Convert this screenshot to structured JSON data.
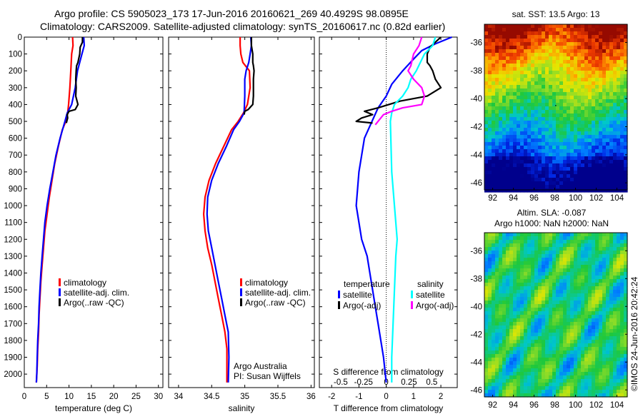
{
  "header": {
    "line1": "Argo profile: CS 5905023_173 17-Jun-2016 20160621_269 40.4929S 98.0895E",
    "line2": "Climatology: CARS2009. Satellite-adjusted climatology: synTS_20160617.nc (0.82d earlier)"
  },
  "credit": "Argo Australia",
  "pi": "PI: Susan Wijffels",
  "watermark": "©IMOS 24-Jun-2016 20:42:24",
  "colors": {
    "climatology": "#ff0000",
    "satellite": "#0000ff",
    "argo": "#000000",
    "salinity_sat": "#00ffff",
    "salinity_argo": "#ff00ff"
  },
  "chart_data": [
    {
      "type": "line",
      "xlabel": "temperature (deg C)",
      "xlim": [
        0,
        31
      ],
      "xticks": [
        "0",
        "5",
        "10",
        "15",
        "20",
        "25",
        "30"
      ],
      "xtick_values": [
        0,
        5,
        10,
        15,
        20,
        25,
        30
      ],
      "ylim": [
        0,
        2080
      ],
      "yticks": [
        "0",
        "100",
        "200",
        "300",
        "400",
        "500",
        "600",
        "700",
        "800",
        "900",
        "1000",
        "1100",
        "1200",
        "1300",
        "1400",
        "1500",
        "1600",
        "1700",
        "1800",
        "1900",
        "2000"
      ],
      "ytick_values": [
        0,
        100,
        200,
        300,
        400,
        500,
        600,
        700,
        800,
        900,
        1000,
        1100,
        1200,
        1300,
        1400,
        1500,
        1600,
        1700,
        1800,
        1900,
        2000
      ],
      "legend": [
        {
          "label": "climatology",
          "color": "#ff0000"
        },
        {
          "label": "satellite-adj. clim.",
          "color": "#0000ff"
        },
        {
          "label": "Argo(..raw -QC)",
          "color": "#000000"
        }
      ],
      "series": [
        {
          "name": "climatology",
          "color": "#ff0000",
          "x": [
            10.8,
            10.9,
            10.6,
            10.4,
            10.2,
            9.9,
            9.7,
            9.3,
            8.5,
            7.6,
            6.8,
            6.2,
            5.6,
            5.1,
            4.6,
            4.3,
            4.0,
            3.7,
            3.5,
            3.3,
            3.2,
            3.0,
            2.9,
            2.8,
            2.7
          ],
          "y": [
            0,
            50,
            100,
            200,
            300,
            400,
            450,
            500,
            550,
            650,
            750,
            850,
            950,
            1050,
            1150,
            1250,
            1350,
            1450,
            1550,
            1650,
            1750,
            1850,
            1950,
            2000,
            2050
          ]
        },
        {
          "name": "satellite-adj. clim.",
          "color": "#0000ff",
          "x": [
            13.3,
            13.4,
            12.9,
            12.4,
            11.9,
            11.4,
            10.6,
            9.6,
            9.1,
            8.0,
            7.1,
            6.4,
            5.7,
            5.1,
            4.6,
            4.3,
            4.0,
            3.7,
            3.5,
            3.3,
            3.2,
            3.0,
            2.9,
            2.8,
            2.7
          ],
          "y": [
            0,
            50,
            100,
            150,
            200,
            300,
            400,
            450,
            500,
            600,
            700,
            800,
            900,
            1000,
            1100,
            1200,
            1300,
            1400,
            1500,
            1600,
            1700,
            1800,
            1900,
            2000,
            2050
          ]
        },
        {
          "name": "Argo(..raw -QC)",
          "color": "#000000",
          "x": [
            13.0,
            13.0,
            12.5,
            12.4,
            12.0,
            11.7,
            11.6,
            11.5,
            11.6,
            11.5,
            12.0,
            11.4,
            10.0,
            9.6,
            9.7,
            9.4
          ],
          "y": [
            0,
            30,
            60,
            100,
            150,
            170,
            200,
            250,
            300,
            350,
            400,
            430,
            440,
            460,
            480,
            510
          ]
        }
      ]
    },
    {
      "type": "line",
      "xlabel": "salinity",
      "xlim": [
        33.85,
        36.05
      ],
      "xticks": [
        "34",
        "34.5",
        "35",
        "35.5",
        "36"
      ],
      "xtick_values": [
        34,
        34.5,
        35,
        35.5,
        36
      ],
      "ylim": [
        0,
        2080
      ],
      "legend": [
        {
          "label": "climatology",
          "color": "#ff0000"
        },
        {
          "label": "satellite-adj. clim.",
          "color": "#0000ff"
        },
        {
          "label": "Argo(..raw -QC)",
          "color": "#000000"
        }
      ],
      "series": [
        {
          "name": "climatology",
          "color": "#ff0000",
          "x": [
            34.93,
            34.93,
            34.94,
            34.97,
            35.07,
            35.08,
            35.04,
            34.98,
            34.9,
            34.8,
            34.68,
            34.56,
            34.46,
            34.4,
            34.38,
            34.4,
            34.44,
            34.5,
            34.55,
            34.6,
            34.65,
            34.7,
            34.73,
            34.73
          ],
          "y": [
            0,
            50,
            100,
            150,
            200,
            300,
            400,
            450,
            500,
            550,
            650,
            750,
            850,
            950,
            1050,
            1150,
            1250,
            1350,
            1450,
            1550,
            1650,
            1750,
            1850,
            2050
          ]
        },
        {
          "name": "satellite-adj. clim.",
          "color": "#0000ff",
          "x": [
            35.09,
            35.1,
            35.08,
            35.06,
            35.02,
            35.0,
            35.0,
            34.99,
            34.92,
            34.83,
            34.72,
            34.6,
            34.5,
            34.44,
            34.43,
            34.45,
            34.5,
            34.55,
            34.6,
            34.65,
            34.7,
            34.75,
            34.76,
            34.75
          ],
          "y": [
            0,
            50,
            100,
            150,
            200,
            250,
            350,
            450,
            500,
            550,
            650,
            750,
            850,
            950,
            1050,
            1150,
            1250,
            1350,
            1450,
            1550,
            1650,
            1750,
            1900,
            2050
          ]
        },
        {
          "name": "Argo(..raw -QC)",
          "color": "#000000",
          "x": [
            35.1,
            35.1,
            35.12,
            35.12,
            35.13,
            35.14,
            35.13,
            35.13,
            35.13,
            35.12,
            35.05,
            35.0,
            34.99
          ],
          "y": [
            0,
            50,
            100,
            150,
            170,
            200,
            250,
            300,
            350,
            400,
            430,
            440,
            460
          ]
        }
      ]
    },
    {
      "type": "line",
      "xlabel": "T difference from climatology",
      "top_axis_label": "S difference from climatology",
      "xlim": [
        -2.45,
        2.6
      ],
      "xticks": [
        "-2",
        "-1",
        "0",
        "1",
        "2"
      ],
      "xtick_values": [
        -2,
        -1,
        0,
        1,
        2
      ],
      "sxticks": [
        "-0.5",
        "-0.25",
        "0",
        "0.25",
        "0.5"
      ],
      "sxtick_values": [
        -0.5,
        -0.25,
        0,
        0.25,
        0.5
      ],
      "s_scale": 3.333,
      "ylim": [
        0,
        2080
      ],
      "legend_headers": [
        "temperature",
        "salinity"
      ],
      "legend": [
        {
          "label": "satellite",
          "color": "#0000ff"
        },
        {
          "label": "Argo(-adj)",
          "color": "#000000"
        },
        {
          "label": "satellite",
          "color": "#00ffff"
        },
        {
          "label": "Argo(-adj)",
          "color": "#ff00ff"
        }
      ],
      "series": [
        {
          "name": "temperature satellite",
          "color": "#0000ff",
          "x": [
            2.4,
            1.8,
            1.3,
            1.0,
            0.6,
            0.2,
            0,
            -0.3,
            -0.8,
            -1.0,
            -1.1,
            -1.0,
            -0.9,
            -0.7,
            -0.6,
            -0.5,
            -0.4,
            -0.3,
            -0.2,
            -0.1,
            0
          ],
          "y": [
            0,
            40,
            80,
            130,
            200,
            280,
            350,
            420,
            600,
            800,
            1000,
            1100,
            1200,
            1300,
            1400,
            1500,
            1600,
            1700,
            1800,
            1900,
            2050
          ]
        },
        {
          "name": "temperature Argo(-adj)",
          "color": "#000000",
          "x": [
            2.0,
            1.8,
            1.6,
            1.5,
            1.5,
            1.6,
            1.7,
            1.8,
            2.0,
            1.5,
            0.5,
            -0.3,
            -0.8,
            -0.5,
            -0.9,
            -1.1,
            -0.5
          ],
          "y": [
            0,
            30,
            60,
            100,
            150,
            170,
            200,
            250,
            300,
            350,
            380,
            420,
            440,
            460,
            480,
            500,
            510
          ]
        },
        {
          "name": "salinity satellite",
          "color": "#00ffff",
          "x": [
            1.8,
            1.7,
            1.4,
            1.1,
            0.9,
            0.8,
            0.6,
            0.3,
            0.2,
            0.15,
            0.2,
            0.3,
            0.35,
            0.4,
            0.35,
            0.3,
            0.25,
            0.2,
            0.2
          ],
          "y": [
            0,
            50,
            100,
            200,
            250,
            300,
            350,
            400,
            450,
            500,
            800,
            1000,
            1100,
            1200,
            1300,
            1500,
            1700,
            1900,
            2050
          ]
        },
        {
          "name": "salinity Argo(-adj)",
          "color": "#ff00ff",
          "x": [
            1.3,
            1.2,
            1.0,
            0.9,
            0.8,
            1.0,
            1.3,
            1.4,
            1.3,
            0.6,
            0.2,
            -0.1,
            -0.4
          ],
          "y": [
            0,
            50,
            100,
            170,
            200,
            250,
            300,
            350,
            400,
            420,
            440,
            460,
            520
          ]
        }
      ]
    }
  ],
  "maps": [
    {
      "type": "heatmap",
      "title": "sat. SST: 13.5 Argo: 13",
      "lon_ticks": [
        "92",
        "94",
        "96",
        "98",
        "100",
        "102",
        "104"
      ],
      "lon_values": [
        92,
        94,
        96,
        98,
        100,
        102,
        104
      ],
      "lon_range": [
        91.2,
        105
      ],
      "lat_ticks": [
        "-36",
        "-38",
        "-40",
        "-42",
        "-44",
        "-46"
      ],
      "lat_values": [
        -36,
        -38,
        -40,
        -42,
        -44,
        -46
      ],
      "lat_range": [
        -34.7,
        -46.5
      ]
    },
    {
      "type": "heatmap",
      "title": "Altim. SLA: -0.087",
      "subtitle": "Argo h1000: NaN h2000: NaN",
      "lon_ticks": [
        "92",
        "94",
        "96",
        "98",
        "100",
        "102",
        "104"
      ],
      "lon_values": [
        92,
        94,
        96,
        98,
        100,
        102,
        104
      ],
      "lon_range": [
        91.2,
        105
      ],
      "lat_ticks": [
        "-36",
        "-38",
        "-40",
        "-42",
        "-44",
        "-46"
      ],
      "lat_values": [
        -36,
        -38,
        -40,
        -42,
        -44,
        -46
      ],
      "lat_range": [
        -34.7,
        -46.5
      ]
    }
  ]
}
